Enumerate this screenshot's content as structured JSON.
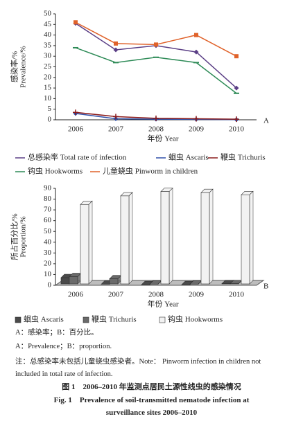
{
  "chart_data": [
    {
      "type": "line",
      "panel": "A",
      "ylabel": [
        "感染率/%",
        "Prevalence/%"
      ],
      "xlabel": "年份 Year",
      "categories": [
        "2006",
        "2007",
        "2008",
        "2009",
        "2010"
      ],
      "ylim": [
        0,
        50
      ],
      "yticks": [
        0,
        5,
        10,
        15,
        20,
        25,
        30,
        35,
        40,
        45,
        50
      ],
      "series": [
        {
          "name": "总感染率 Total rate of infection",
          "color": "#5b3f86",
          "marker": "diamond",
          "values": [
            45.5,
            33,
            35,
            32,
            15
          ]
        },
        {
          "name": "蛔虫 Ascaris",
          "color": "#2f4fa8",
          "marker": "diamond",
          "values": [
            3,
            0.5,
            0.3,
            0.2,
            0.1
          ]
        },
        {
          "name": "鞭虫 Trichuris",
          "color": "#8b1a1a",
          "marker": "plus",
          "values": [
            3.5,
            1.5,
            0.7,
            0.5,
            0.3
          ]
        },
        {
          "name": "钩虫 Hookworms",
          "color": "#2e8b57",
          "marker": "dash",
          "values": [
            34,
            27,
            29.5,
            27,
            12.5
          ]
        },
        {
          "name": "儿童蛲虫 Pinworm in children",
          "color": "#e0622a",
          "marker": "square",
          "values": [
            46,
            36,
            35.5,
            40,
            30
          ]
        }
      ]
    },
    {
      "type": "bar3d",
      "panel": "B",
      "ylabel": [
        "所占百分比/%",
        "Proportion/%"
      ],
      "xlabel": "年份 Year",
      "categories": [
        "2006",
        "2007",
        "2008",
        "2009",
        "2010"
      ],
      "ylim": [
        0,
        90
      ],
      "yticks": [
        0,
        10,
        20,
        30,
        40,
        50,
        60,
        70,
        80,
        90
      ],
      "series": [
        {
          "name": "蛔虫 Ascaris",
          "color": "#4a4a4a",
          "values": [
            7,
            1,
            0.5,
            0.5,
            1.5
          ]
        },
        {
          "name": "鞭虫 Trichuris",
          "color": "#6a6a6a",
          "values": [
            8,
            6,
            1,
            1,
            1.5
          ]
        },
        {
          "name": "钩虫 Hookworms",
          "color": "#f2f2f2",
          "values": [
            75,
            83,
            87,
            86,
            84
          ]
        }
      ]
    }
  ],
  "notes": [
    "A：感染率；B：百分比。",
    "A：Prevalence；B：proportion.",
    "注：总感染率未包括儿童蛲虫感染者。Note： Pinworm infection in children not included in total rate of infection."
  ],
  "caption": [
    "图 1　2006–2010 年监测点居民土源性线虫的感染情况",
    "Fig. 1　Prevalence of soil-transmitted nematode infection at surveillance sites 2006–2010"
  ]
}
